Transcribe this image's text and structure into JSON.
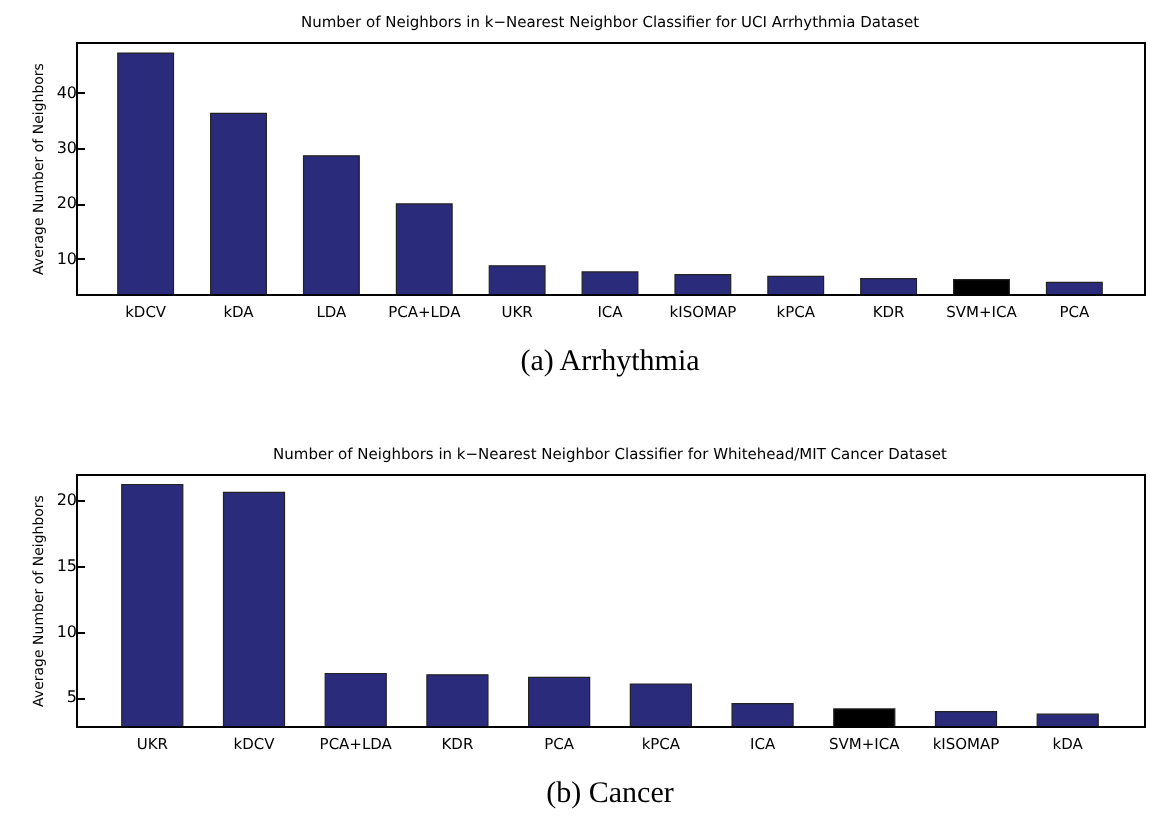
{
  "chart_data": [
    {
      "type": "bar",
      "title": "Number of Neighbors in k−Nearest Neighbor Classifier for UCI Arrhythmia Dataset",
      "ylabel": "Average Number of Neighbors",
      "categories": [
        "kDCV",
        "kDA",
        "LDA",
        "PCA+LDA",
        "UKR",
        "ICA",
        "kISOMAP",
        "kPCA",
        "KDR",
        "SVM+ICA",
        "PCA"
      ],
      "values": [
        47.2,
        36.3,
        28.6,
        19.9,
        8.7,
        7.6,
        7.1,
        6.8,
        6.4,
        6.2,
        5.7
      ],
      "colors": [
        "#2b2b7c",
        "#2b2b7c",
        "#2b2b7c",
        "#2b2b7c",
        "#2b2b7c",
        "#2b2b7c",
        "#2b2b7c",
        "#2b2b7c",
        "#2b2b7c",
        "#000000",
        "#2b2b7c"
      ],
      "ylim": [
        3.6,
        49.2
      ],
      "yticks": [
        10,
        20,
        30,
        40
      ],
      "annotations": [
        "(a) Arrhythmia"
      ]
    },
    {
      "type": "bar",
      "title": "Number of Neighbors in k−Nearest Neighbor Classifier for Whitehead/MIT Cancer Dataset",
      "ylabel": "Average Number of Neighbors",
      "categories": [
        "UKR",
        "kDCV",
        "PCA+LDA",
        "KDR",
        "PCA",
        "kPCA",
        "ICA",
        "SVM+ICA",
        "kISOMAP",
        "kDA"
      ],
      "values": [
        21.2,
        20.6,
        6.8,
        6.7,
        6.5,
        6.0,
        4.5,
        4.1,
        3.9,
        3.7
      ],
      "colors": [
        "#2b2b7c",
        "#2b2b7c",
        "#2b2b7c",
        "#2b2b7c",
        "#2b2b7c",
        "#2b2b7c",
        "#2b2b7c",
        "#000000",
        "#2b2b7c",
        "#2b2b7c"
      ],
      "ylim": [
        2.8,
        22
      ],
      "yticks": [
        5,
        10,
        15,
        20
      ],
      "annotations": [
        "(b) Cancer"
      ]
    }
  ]
}
